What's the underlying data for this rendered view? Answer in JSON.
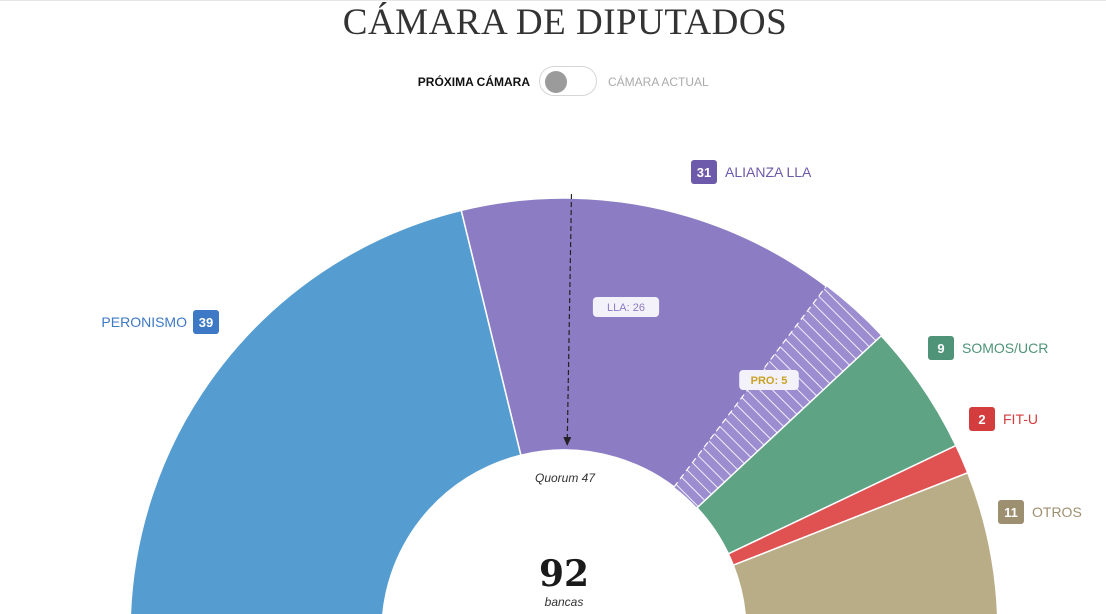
{
  "title": "CÁMARA DE DIPUTADOS",
  "toggle": {
    "left_label": "PRÓXIMA CÁMARA",
    "right_label": "CÁMARA ACTUAL",
    "active": "PRÓXIMA CÁMARA"
  },
  "chart_data": {
    "type": "hemicycle",
    "total_label": "92",
    "total_caption": "bancas",
    "quorum": {
      "value": 47,
      "label": "Quorum 47"
    },
    "series": [
      {
        "name": "PERONISMO",
        "value": 39,
        "color": "#559dd1",
        "badge_color": "#3e79c5"
      },
      {
        "name": "ALIANZA LLA",
        "value": 31,
        "color": "#8c7cc4",
        "badge_color": "#6e5aaa",
        "breakdown": [
          {
            "label": "LLA: 26",
            "value": 26
          },
          {
            "label": "PRO: 5",
            "value": 5
          }
        ]
      },
      {
        "name": "SOMOS/UCR",
        "value": 9,
        "color": "#5fa385",
        "badge_color": "#4f9478"
      },
      {
        "name": "FIT-U",
        "value": 2,
        "color": "#e05252",
        "badge_color": "#d43d3d"
      },
      {
        "name": "OTROS",
        "value": 11,
        "color": "#b9ad88",
        "badge_color": "#9d9070"
      }
    ]
  }
}
